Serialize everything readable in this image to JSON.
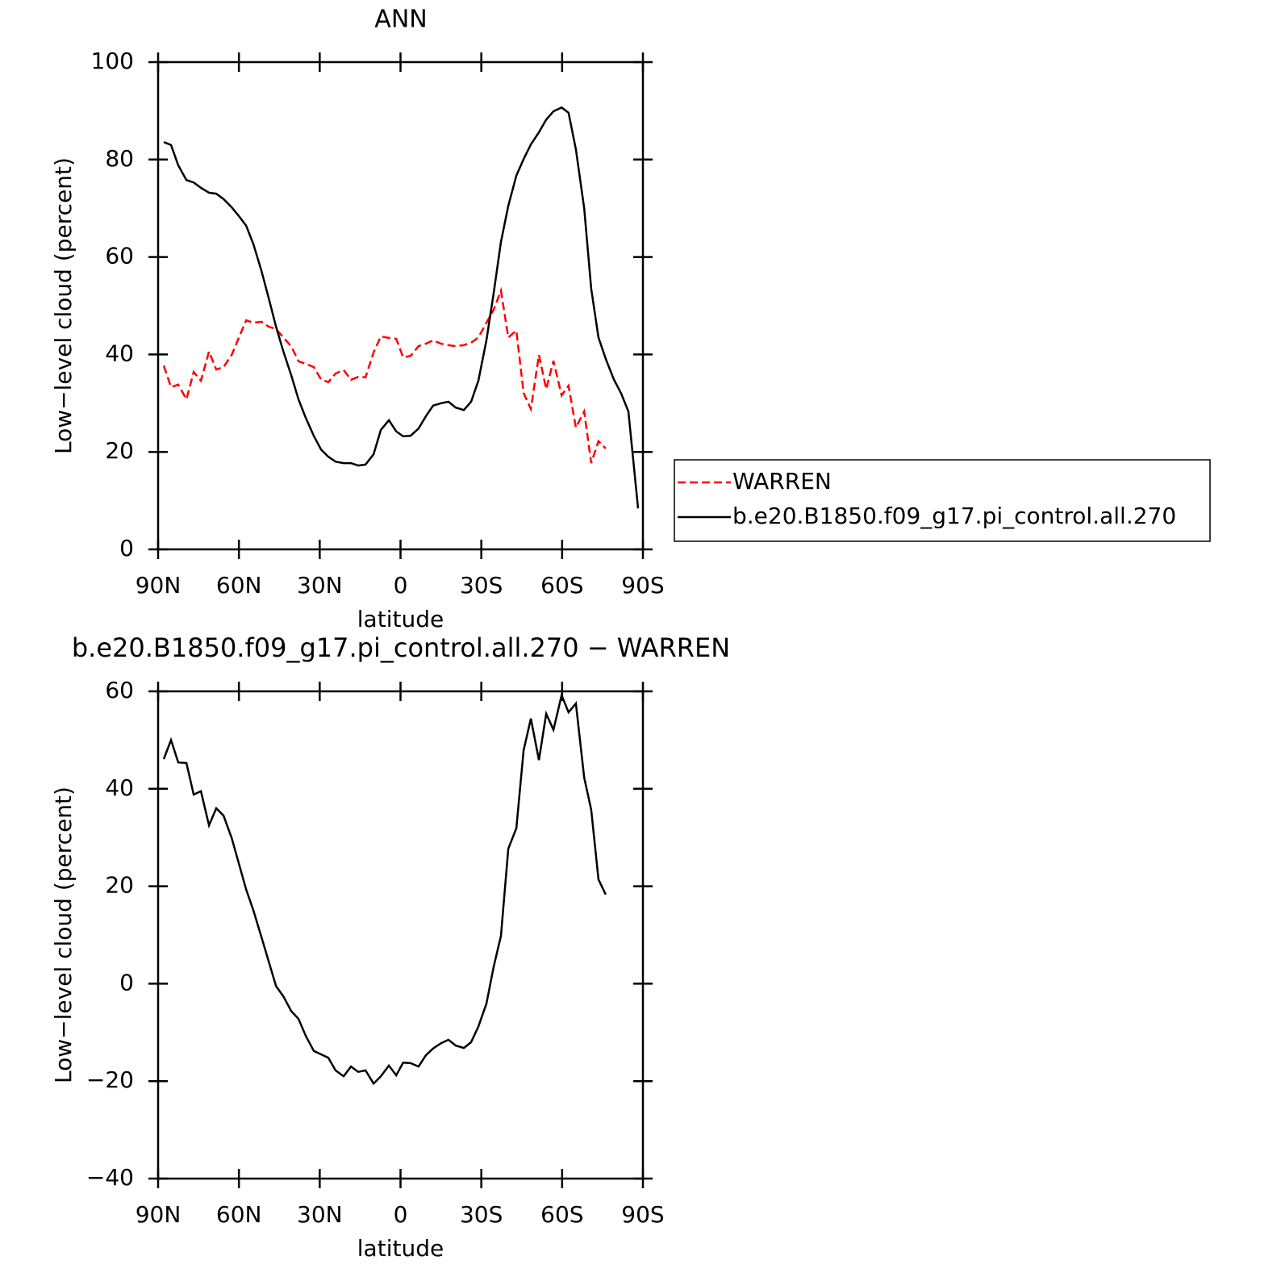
{
  "chart_data": [
    {
      "type": "line",
      "title": "ANN",
      "xlabel": "latitude",
      "ylabel": "Low−level cloud (percent)",
      "x": [
        87.9,
        85.2,
        82.5,
        79.5,
        76.8,
        74.1,
        71.1,
        68.4,
        65.7,
        62.7,
        60.0,
        57.3,
        54.6,
        51.6,
        48.9,
        46.2,
        43.5,
        40.5,
        37.9,
        35.2,
        32.2,
        29.5,
        26.8,
        24.1,
        21.1,
        18.4,
        15.7,
        13.0,
        10.0,
        7.3,
        4.3,
        1.6,
        -1.0,
        -3.7,
        -6.7,
        -9.4,
        -12.1,
        -15.1,
        -17.8,
        -20.5,
        -23.5,
        -26.2,
        -28.9,
        -31.9,
        -34.6,
        -37.3,
        -40.0,
        -43.0,
        -45.7,
        -48.4,
        -51.4,
        -54.1,
        -56.8,
        -59.8,
        -62.4,
        -65.1,
        -68.2,
        -70.8,
        -73.5,
        -76.2,
        -79.2,
        -81.9,
        -84.6,
        -88.2
      ],
      "series": [
        {
          "name": "WARREN",
          "color": "#ff0000",
          "dash": true,
          "values": [
            37.7,
            33.3,
            33.8,
            30.8,
            36.4,
            34.6,
            40.6,
            36.9,
            37.4,
            39.9,
            43.5,
            47,
            46.5,
            46.7,
            45.7,
            45.2,
            43.5,
            41.6,
            38.6,
            38.1,
            37.4,
            34.9,
            34.3,
            36.1,
            36.8,
            34.8,
            35.4,
            35.3,
            40.4,
            43.7,
            43.4,
            43.2,
            39.4,
            39.7,
            41.7,
            42.2,
            42.9,
            42.2,
            41.9,
            41.7,
            41.9,
            42.4,
            43.5,
            46.5,
            49.2,
            53.1,
            43.5,
            44.9,
            32.1,
            28.8,
            39.9,
            32.9,
            38.7,
            31.6,
            33.6,
            25,
            28.3,
            17.7,
            22.2,
            20.7,
            null,
            null,
            null,
            null
          ]
        },
        {
          "name": "b.e20.B1850.f09_g17.pi_control.all.270",
          "color": "#000000",
          "dash": false,
          "values": [
            83.6,
            83,
            78.8,
            75.8,
            75.3,
            74.2,
            73.2,
            73,
            71.9,
            70.2,
            68.4,
            66.4,
            62.6,
            57.1,
            51.5,
            45.7,
            40.6,
            35.6,
            30.8,
            27,
            23.3,
            20.5,
            19,
            18,
            17.7,
            17.7,
            17.2,
            17.4,
            19.5,
            24.5,
            26.5,
            24.2,
            23.2,
            23.3,
            24.8,
            27.3,
            29.5,
            30,
            30.3,
            29.1,
            28.6,
            30.3,
            34.6,
            42.9,
            52.6,
            63.1,
            70.5,
            76.7,
            80.1,
            83.1,
            85.6,
            88.2,
            89.9,
            90.7,
            89.6,
            82.1,
            70,
            53.5,
            43.5,
            39.1,
            34.9,
            32,
            28.3,
            8.4
          ]
        }
      ],
      "xlim": [
        90,
        -90
      ],
      "xticks": [
        {
          "value": 90,
          "label": "90N"
        },
        {
          "value": 60,
          "label": "60N"
        },
        {
          "value": 30,
          "label": "30N"
        },
        0,
        {
          "value": -30,
          "label": "30S"
        },
        {
          "value": -60,
          "label": "60S"
        },
        {
          "value": -90,
          "label": "90S"
        }
      ],
      "ylim": [
        0,
        100
      ],
      "yticks": [
        0,
        20,
        40,
        60,
        80,
        100
      ],
      "legend": "right"
    },
    {
      "type": "line",
      "title": "b.e20.B1850.f09_g17.pi_control.all.270 − WARREN",
      "xlabel": "latitude",
      "ylabel": "Low−level cloud (percent)",
      "x": [
        87.9,
        85.2,
        82.5,
        79.5,
        76.8,
        74.1,
        71.1,
        68.4,
        65.7,
        62.7,
        60.0,
        57.3,
        54.6,
        51.6,
        48.9,
        46.2,
        43.5,
        40.5,
        37.9,
        35.2,
        32.2,
        29.5,
        26.8,
        24.1,
        21.1,
        18.4,
        15.7,
        13.0,
        10.0,
        7.3,
        4.3,
        1.6,
        -1.0,
        -3.7,
        -6.7,
        -9.4,
        -12.1,
        -15.1,
        -17.8,
        -20.5,
        -23.5,
        -26.2,
        -28.9,
        -31.9,
        -34.6,
        -37.3,
        -40.0,
        -43.0,
        -45.7,
        -48.4,
        -51.4,
        -54.1,
        -56.8,
        -59.8,
        -62.4,
        -65.1,
        -68.2,
        -70.8,
        -73.5,
        -76.2
      ],
      "series": [
        {
          "color": "#000000",
          "dash": false,
          "values": [
            46.1,
            50,
            45.4,
            45.3,
            38.8,
            39.5,
            32.5,
            36,
            34.5,
            29.9,
            24.6,
            19.3,
            15,
            9.5,
            4.5,
            -0.5,
            -2.6,
            -5.7,
            -7.2,
            -10.7,
            -13.8,
            -14.5,
            -15.2,
            -17.8,
            -19,
            -17,
            -18.1,
            -17.8,
            -20.5,
            -19,
            -16.8,
            -18.8,
            -16.2,
            -16.3,
            -17,
            -14.7,
            -13.3,
            -12.2,
            -11.5,
            -12.7,
            -13.2,
            -12,
            -8.8,
            -4.1,
            3.5,
            9.8,
            27.7,
            31.9,
            47.9,
            54.4,
            45.9,
            55.4,
            52.1,
            59.2,
            55.7,
            57.5,
            42.3,
            35.7,
            21.4,
            18.3
          ]
        }
      ],
      "xlim": [
        90,
        -90
      ],
      "xticks": [
        {
          "value": 90,
          "label": "90N"
        },
        {
          "value": 60,
          "label": "60N"
        },
        {
          "value": 30,
          "label": "30N"
        },
        0,
        {
          "value": -30,
          "label": "30S"
        },
        {
          "value": -60,
          "label": "60S"
        },
        {
          "value": -90,
          "label": "90S"
        }
      ],
      "ylim": [
        -40,
        60
      ],
      "yticks": [
        {
          "value": -40,
          "label": "−40"
        },
        {
          "value": -20,
          "label": "−20"
        },
        0,
        20,
        40,
        60
      ]
    }
  ]
}
